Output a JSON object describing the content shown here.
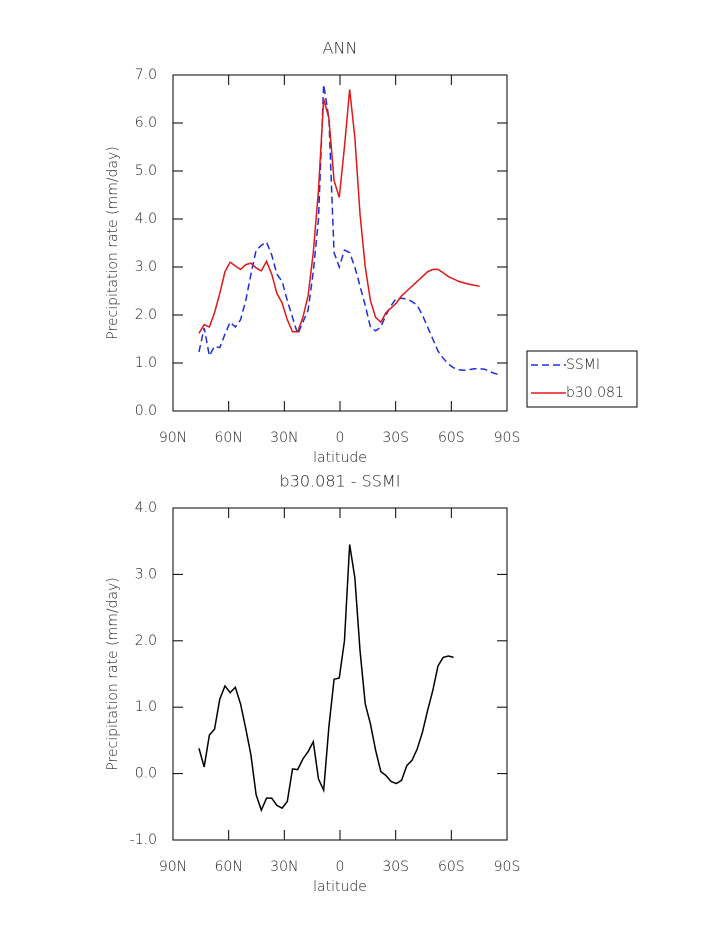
{
  "chart_data": [
    {
      "type": "line",
      "title": "ANN",
      "x_label": "latitude",
      "y_label": "Precipitation rate (mm/day)",
      "x": [
        76,
        73.2,
        70.4,
        67.6,
        64.8,
        62,
        59.2,
        56.4,
        53.6,
        50.8,
        48,
        45.2,
        42.4,
        39.6,
        36.8,
        34,
        31.2,
        28.4,
        25.6,
        22.8,
        20,
        17.2,
        14.4,
        11.6,
        8.8,
        6,
        3.2,
        0.4,
        -2.4,
        -5.2,
        -8,
        -10.8,
        -13.6,
        -16.4,
        -19.2,
        -22,
        -24.8,
        -27.6,
        -30.4,
        -33.2,
        -36,
        -38.8,
        -41.6,
        -44.4,
        -47.2,
        -50,
        -52.8,
        -55.6,
        -58.4,
        -61.2,
        -64,
        -66.8,
        -69.6,
        -72.4,
        -75.2,
        -78,
        -80.8,
        -83.6,
        -86.4
      ],
      "series": [
        {
          "name": "SSMI",
          "color": "#1f2ee0",
          "line_style": "dashed",
          "values": [
            1.23,
            1.73,
            1.15,
            1.35,
            1.32,
            1.6,
            1.85,
            1.75,
            1.9,
            2.3,
            2.85,
            3.35,
            3.45,
            3.52,
            3.25,
            2.85,
            2.7,
            2.3,
            1.95,
            1.6,
            1.85,
            2.1,
            2.9,
            4.0,
            6.8,
            6.1,
            3.3,
            3.0,
            3.35,
            3.3,
            3.0,
            2.6,
            2.2,
            1.75,
            1.67,
            1.75,
            2.0,
            2.2,
            2.35,
            2.35,
            2.33,
            2.28,
            2.2,
            2.0,
            1.75,
            1.5,
            1.25,
            1.1,
            0.98,
            0.9,
            0.86,
            0.85,
            0.86,
            0.88,
            0.88,
            0.87,
            0.82,
            0.78,
            0.75
          ]
        },
        {
          "name": "b30.081",
          "color": "#e01818",
          "line_style": "solid",
          "values": [
            1.62,
            1.8,
            1.75,
            2.05,
            2.45,
            2.9,
            3.1,
            3.02,
            2.95,
            3.05,
            3.08,
            2.98,
            2.92,
            3.12,
            2.85,
            2.45,
            2.25,
            1.9,
            1.65,
            1.65,
            1.95,
            2.4,
            3.3,
            4.6,
            6.5,
            6.1,
            4.8,
            4.45,
            5.5,
            6.7,
            5.7,
            4.1,
            3.0,
            2.3,
            1.95,
            1.85,
            2.05,
            2.15,
            2.25,
            2.4,
            2.5,
            2.6,
            2.7,
            2.8,
            2.9,
            2.95,
            2.95,
            2.88,
            2.8,
            2.75,
            2.7,
            2.67,
            2.64,
            2.62,
            2.6,
            null,
            null,
            null,
            null
          ]
        }
      ],
      "xlim": [
        90,
        -90
      ],
      "xticks": [
        {
          "value": 90,
          "label": "90N"
        },
        {
          "value": 60,
          "label": "60N"
        },
        {
          "value": 30,
          "label": "30N"
        },
        0,
        {
          "value": -30,
          "label": "30S"
        },
        {
          "value": -60,
          "label": "60S"
        },
        {
          "value": -90,
          "label": "90S"
        }
      ],
      "ylim": [
        0,
        7
      ],
      "yticks": [
        {
          "value": 0,
          "label": "0.0"
        },
        {
          "value": 1,
          "label": "1.0"
        },
        {
          "value": 2,
          "label": "2.0"
        },
        {
          "value": 3,
          "label": "3.0"
        },
        {
          "value": 4,
          "label": "4.0"
        },
        {
          "value": 5,
          "label": "5.0"
        },
        {
          "value": 6,
          "label": "6.0"
        },
        {
          "value": 7,
          "label": "7.0"
        }
      ],
      "legend": "right"
    },
    {
      "type": "line",
      "title": "b30.081 - SSMI",
      "x_label": "latitude",
      "y_label": "Precipitation rate (mm/day)",
      "x": [
        76,
        73.2,
        70.4,
        67.6,
        64.8,
        62,
        59.2,
        56.4,
        53.6,
        50.8,
        48,
        45.2,
        42.4,
        39.6,
        36.8,
        34,
        31.2,
        28.4,
        25.6,
        22.8,
        20,
        17.2,
        14.4,
        11.6,
        8.8,
        6,
        3.2,
        0.4,
        -2.4,
        -5.2,
        -8,
        -10.8,
        -13.6,
        -16.4,
        -19.2,
        -22,
        -24.8,
        -27.6,
        -30.4,
        -33.2,
        -36,
        -38.8,
        -41.6,
        -44.4,
        -47.2,
        -50,
        -52.8,
        -55.6,
        -58.4,
        -61.2,
        -64,
        -66.8,
        -69.6,
        -72.4,
        -75.2,
        -78,
        -80.8,
        -83.6,
        -86.4
      ],
      "series": [
        {
          "color": "#000000",
          "line_style": "solid",
          "values": [
            0.38,
            0.1,
            0.58,
            0.67,
            1.12,
            1.32,
            1.22,
            1.3,
            1.05,
            0.68,
            0.28,
            -0.32,
            -0.55,
            -0.37,
            -0.37,
            -0.48,
            -0.52,
            -0.42,
            0.07,
            0.06,
            0.22,
            0.33,
            0.48,
            -0.08,
            -0.25,
            0.7,
            1.42,
            1.44,
            2.0,
            3.45,
            2.95,
            1.85,
            1.05,
            0.75,
            0.35,
            0.03,
            -0.03,
            -0.12,
            -0.15,
            -0.1,
            0.12,
            0.2,
            0.37,
            0.62,
            0.95,
            1.25,
            1.62,
            1.75,
            1.77,
            1.75,
            null,
            null,
            null,
            null,
            null,
            null,
            null,
            null,
            null
          ]
        }
      ],
      "xlim": [
        90,
        -90
      ],
      "xticks": [
        {
          "value": 90,
          "label": "90N"
        },
        {
          "value": 60,
          "label": "60N"
        },
        {
          "value": 30,
          "label": "30N"
        },
        0,
        {
          "value": -30,
          "label": "30S"
        },
        {
          "value": -60,
          "label": "60S"
        },
        {
          "value": -90,
          "label": "90S"
        }
      ],
      "ylim": [
        -1,
        4
      ],
      "yticks": [
        {
          "value": -1,
          "label": "-1.0"
        },
        {
          "value": 0,
          "label": "0.0"
        },
        {
          "value": 1,
          "label": "1.0"
        },
        {
          "value": 2,
          "label": "2.0"
        },
        {
          "value": 3,
          "label": "3.0"
        },
        {
          "value": 4,
          "label": "4.0"
        }
      ]
    }
  ]
}
